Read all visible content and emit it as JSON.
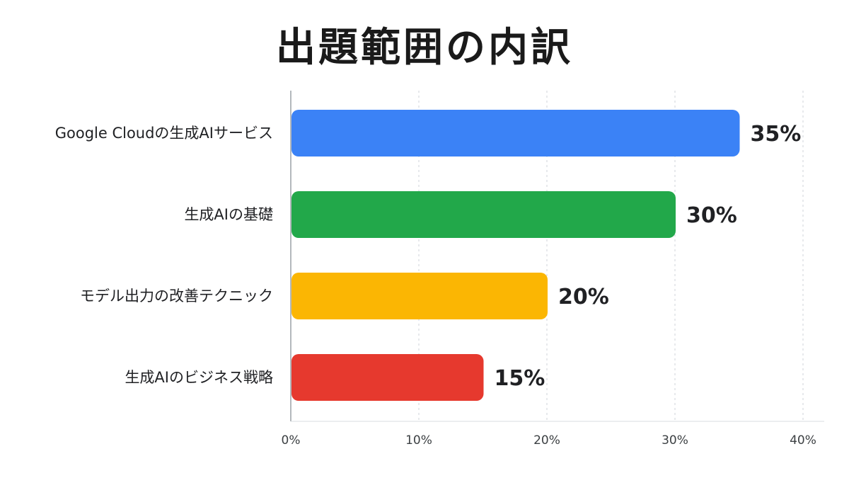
{
  "chart_data": {
    "type": "bar",
    "orientation": "horizontal",
    "title": "出題範囲の内訳",
    "categories": [
      "Google Cloudの生成AIサービス",
      "生成AIの基礎",
      "モデル出力の改善テクニック",
      "生成AIのビジネス戦略"
    ],
    "values": [
      35,
      30,
      20,
      15
    ],
    "value_labels": [
      "35%",
      "30%",
      "20%",
      "15%"
    ],
    "colors": [
      "#3B82F6",
      "#22A84A",
      "#FBB603",
      "#E6392E"
    ],
    "xlim": [
      0,
      40
    ],
    "x_ticks": [
      0,
      10,
      20,
      30,
      40
    ],
    "x_tick_labels": [
      "0%",
      "10%",
      "20%",
      "30%",
      "40%"
    ],
    "grid": "vertical dashed",
    "legend": "none"
  }
}
